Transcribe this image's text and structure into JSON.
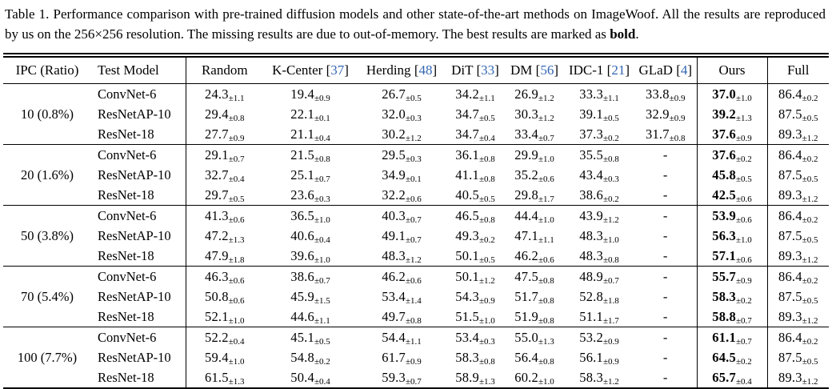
{
  "caption": {
    "text_before": "Table 1. Performance comparison with pre-trained diffusion models and other state-of-the-art methods on ImageWoof. All the results are reproduced by us on the 256×256 resolution. The missing results are due to out-of-memory. The best results are marked as ",
    "bold_word": "bold",
    "suffix": "."
  },
  "colors": {
    "citation_link": "#3366b2",
    "text": "#000000",
    "rule": "#000000"
  },
  "table": {
    "pm_symbol": "±",
    "cite_brackets": {
      "open": "[",
      "close": "]"
    },
    "columns": [
      {
        "key": "ipc",
        "label": "IPC (Ratio)"
      },
      {
        "key": "model",
        "label": "Test Model"
      },
      {
        "key": "random",
        "label": "Random"
      },
      {
        "key": "kcenter",
        "label": "K-Center",
        "cite": "37"
      },
      {
        "key": "herding",
        "label": "Herding",
        "cite": "48"
      },
      {
        "key": "dit",
        "label": "DiT",
        "cite": "33"
      },
      {
        "key": "dm",
        "label": "DM",
        "cite": "56"
      },
      {
        "key": "idc1",
        "label": "IDC-1",
        "cite": "21"
      },
      {
        "key": "glad",
        "label": "GLaD",
        "cite": "4"
      },
      {
        "key": "ours",
        "label": "Ours"
      },
      {
        "key": "full",
        "label": "Full"
      }
    ],
    "value_columns": [
      {
        "key": "random"
      },
      {
        "key": "kcenter"
      },
      {
        "key": "herding"
      },
      {
        "key": "dit"
      },
      {
        "key": "dm"
      },
      {
        "key": "idc1"
      },
      {
        "key": "glad"
      },
      {
        "key": "ours"
      },
      {
        "key": "full"
      }
    ],
    "groups": [
      {
        "ipc": "10 (0.8%)",
        "rows": [
          {
            "model": "ConvNet-6",
            "values": [
              [
                "24.3",
                "1.1"
              ],
              [
                "19.4",
                "0.9"
              ],
              [
                "26.7",
                "0.5"
              ],
              [
                "34.2",
                "1.1"
              ],
              [
                "26.9",
                "1.2"
              ],
              [
                "33.3",
                "1.1"
              ],
              [
                "33.8",
                "0.9"
              ],
              [
                "37.0",
                "1.0"
              ],
              [
                "86.4",
                "0.2"
              ]
            ]
          },
          {
            "model": "ResNetAP-10",
            "values": [
              [
                "29.4",
                "0.8"
              ],
              [
                "22.1",
                "0.1"
              ],
              [
                "32.0",
                "0.3"
              ],
              [
                "34.7",
                "0.5"
              ],
              [
                "30.3",
                "1.2"
              ],
              [
                "39.1",
                "0.5"
              ],
              [
                "32.9",
                "0.9"
              ],
              [
                "39.2",
                "1.3"
              ],
              [
                "87.5",
                "0.5"
              ]
            ]
          },
          {
            "model": "ResNet-18",
            "values": [
              [
                "27.7",
                "0.9"
              ],
              [
                "21.1",
                "0.4"
              ],
              [
                "30.2",
                "1.2"
              ],
              [
                "34.7",
                "0.4"
              ],
              [
                "33.4",
                "0.7"
              ],
              [
                "37.3",
                "0.2"
              ],
              [
                "31.7",
                "0.8"
              ],
              [
                "37.6",
                "0.9"
              ],
              [
                "89.3",
                "1.2"
              ]
            ]
          }
        ]
      },
      {
        "ipc": "20 (1.6%)",
        "rows": [
          {
            "model": "ConvNet-6",
            "values": [
              [
                "29.1",
                "0.7"
              ],
              [
                "21.5",
                "0.8"
              ],
              [
                "29.5",
                "0.3"
              ],
              [
                "36.1",
                "0.8"
              ],
              [
                "29.9",
                "1.0"
              ],
              [
                "35.5",
                "0.8"
              ],
              [
                "-",
                ""
              ],
              [
                "37.6",
                "0.2"
              ],
              [
                "86.4",
                "0.2"
              ]
            ]
          },
          {
            "model": "ResNetAP-10",
            "values": [
              [
                "32.7",
                "0.4"
              ],
              [
                "25.1",
                "0.7"
              ],
              [
                "34.9",
                "0.1"
              ],
              [
                "41.1",
                "0.8"
              ],
              [
                "35.2",
                "0.6"
              ],
              [
                "43.4",
                "0.3"
              ],
              [
                "-",
                ""
              ],
              [
                "45.8",
                "0.5"
              ],
              [
                "87.5",
                "0.5"
              ]
            ]
          },
          {
            "model": "ResNet-18",
            "values": [
              [
                "29.7",
                "0.5"
              ],
              [
                "23.6",
                "0.3"
              ],
              [
                "32.2",
                "0.6"
              ],
              [
                "40.5",
                "0.5"
              ],
              [
                "29.8",
                "1.7"
              ],
              [
                "38.6",
                "0.2"
              ],
              [
                "-",
                ""
              ],
              [
                "42.5",
                "0.6"
              ],
              [
                "89.3",
                "1.2"
              ]
            ]
          }
        ]
      },
      {
        "ipc": "50 (3.8%)",
        "rows": [
          {
            "model": "ConvNet-6",
            "values": [
              [
                "41.3",
                "0.6"
              ],
              [
                "36.5",
                "1.0"
              ],
              [
                "40.3",
                "0.7"
              ],
              [
                "46.5",
                "0.8"
              ],
              [
                "44.4",
                "1.0"
              ],
              [
                "43.9",
                "1.2"
              ],
              [
                "-",
                ""
              ],
              [
                "53.9",
                "0.6"
              ],
              [
                "86.4",
                "0.2"
              ]
            ]
          },
          {
            "model": "ResNetAP-10",
            "values": [
              [
                "47.2",
                "1.3"
              ],
              [
                "40.6",
                "0.4"
              ],
              [
                "49.1",
                "0.7"
              ],
              [
                "49.3",
                "0.2"
              ],
              [
                "47.1",
                "1.1"
              ],
              [
                "48.3",
                "1.0"
              ],
              [
                "-",
                ""
              ],
              [
                "56.3",
                "1.0"
              ],
              [
                "87.5",
                "0.5"
              ]
            ]
          },
          {
            "model": "ResNet-18",
            "values": [
              [
                "47.9",
                "1.8"
              ],
              [
                "39.6",
                "1.0"
              ],
              [
                "48.3",
                "1.2"
              ],
              [
                "50.1",
                "0.5"
              ],
              [
                "46.2",
                "0.6"
              ],
              [
                "48.3",
                "0.8"
              ],
              [
                "-",
                ""
              ],
              [
                "57.1",
                "0.6"
              ],
              [
                "89.3",
                "1.2"
              ]
            ]
          }
        ]
      },
      {
        "ipc": "70 (5.4%)",
        "rows": [
          {
            "model": "ConvNet-6",
            "values": [
              [
                "46.3",
                "0.6"
              ],
              [
                "38.6",
                "0.7"
              ],
              [
                "46.2",
                "0.6"
              ],
              [
                "50.1",
                "1.2"
              ],
              [
                "47.5",
                "0.8"
              ],
              [
                "48.9",
                "0.7"
              ],
              [
                "-",
                ""
              ],
              [
                "55.7",
                "0.9"
              ],
              [
                "86.4",
                "0.2"
              ]
            ]
          },
          {
            "model": "ResNetAP-10",
            "values": [
              [
                "50.8",
                "0.6"
              ],
              [
                "45.9",
                "1.5"
              ],
              [
                "53.4",
                "1.4"
              ],
              [
                "54.3",
                "0.9"
              ],
              [
                "51.7",
                "0.8"
              ],
              [
                "52.8",
                "1.8"
              ],
              [
                "-",
                ""
              ],
              [
                "58.3",
                "0.2"
              ],
              [
                "87.5",
                "0.5"
              ]
            ]
          },
          {
            "model": "ResNet-18",
            "values": [
              [
                "52.1",
                "1.0"
              ],
              [
                "44.6",
                "1.1"
              ],
              [
                "49.7",
                "0.8"
              ],
              [
                "51.5",
                "1.0"
              ],
              [
                "51.9",
                "0.8"
              ],
              [
                "51.1",
                "1.7"
              ],
              [
                "-",
                ""
              ],
              [
                "58.8",
                "0.7"
              ],
              [
                "89.3",
                "1.2"
              ]
            ]
          }
        ]
      },
      {
        "ipc": "100 (7.7%)",
        "rows": [
          {
            "model": "ConvNet-6",
            "values": [
              [
                "52.2",
                "0.4"
              ],
              [
                "45.1",
                "0.5"
              ],
              [
                "54.4",
                "1.1"
              ],
              [
                "53.4",
                "0.3"
              ],
              [
                "55.0",
                "1.3"
              ],
              [
                "53.2",
                "0.9"
              ],
              [
                "-",
                ""
              ],
              [
                "61.1",
                "0.7"
              ],
              [
                "86.4",
                "0.2"
              ]
            ]
          },
          {
            "model": "ResNetAP-10",
            "values": [
              [
                "59.4",
                "1.0"
              ],
              [
                "54.8",
                "0.2"
              ],
              [
                "61.7",
                "0.9"
              ],
              [
                "58.3",
                "0.8"
              ],
              [
                "56.4",
                "0.8"
              ],
              [
                "56.1",
                "0.9"
              ],
              [
                "-",
                ""
              ],
              [
                "64.5",
                "0.2"
              ],
              [
                "87.5",
                "0.5"
              ]
            ]
          },
          {
            "model": "ResNet-18",
            "values": [
              [
                "61.5",
                "1.3"
              ],
              [
                "50.4",
                "0.4"
              ],
              [
                "59.3",
                "0.7"
              ],
              [
                "58.9",
                "1.3"
              ],
              [
                "60.2",
                "1.0"
              ],
              [
                "58.3",
                "1.2"
              ],
              [
                "-",
                ""
              ],
              [
                "65.7",
                "0.4"
              ],
              [
                "89.3",
                "1.2"
              ]
            ]
          }
        ]
      }
    ]
  }
}
